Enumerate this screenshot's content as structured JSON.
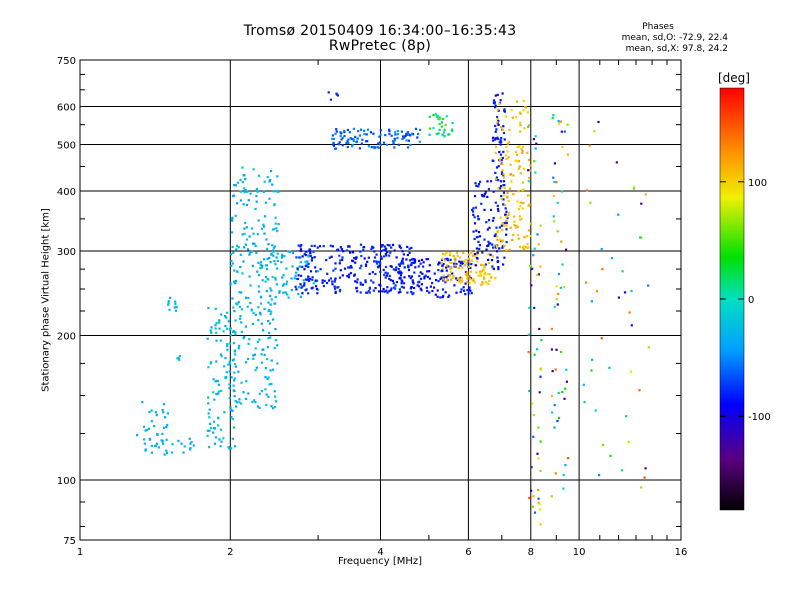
{
  "title": {
    "line1": "Tromsø 20150409 16:34:00–16:35:43",
    "line2": "RwPretec (8p)"
  },
  "phases": {
    "heading": "Phases",
    "o_stats": "mean, sd,O: -72.9, 22.4",
    "x_stats": "mean, sd,X: 97.8, 24.2"
  },
  "colorbar": {
    "unit_label": "[deg]",
    "ticks": [
      {
        "value": 100,
        "label": "100"
      },
      {
        "value": 0,
        "label": "0"
      },
      {
        "value": -100,
        "label": "-100"
      }
    ],
    "range": [
      -180,
      180
    ]
  },
  "chart_data": {
    "type": "scatter",
    "xlabel": "Frequency [MHz]",
    "ylabel": "Stationary phase Virtual Height [km]",
    "xscale": "log",
    "yscale": "log",
    "xlim": [
      1,
      16
    ],
    "ylim": [
      75,
      750
    ],
    "xticks": [
      {
        "value": 1,
        "label": "1"
      },
      {
        "value": 2,
        "label": "2"
      },
      {
        "value": 4,
        "label": "4"
      },
      {
        "value": 6,
        "label": "6"
      },
      {
        "value": 8,
        "label": "8"
      },
      {
        "value": 10,
        "label": "10"
      },
      {
        "value": 16,
        "label": "16"
      }
    ],
    "yticks": [
      {
        "value": 75,
        "label": "75"
      },
      {
        "value": 100,
        "label": "100"
      },
      {
        "value": 200,
        "label": "200"
      },
      {
        "value": 300,
        "label": "300"
      },
      {
        "value": 400,
        "label": "400"
      },
      {
        "value": 500,
        "label": "500"
      },
      {
        "value": 600,
        "label": "600"
      },
      {
        "value": 750,
        "label": "750"
      }
    ],
    "grid": true,
    "color_by": "phase (deg)",
    "clusters": [
      {
        "f": [
          1.3,
          1.5
        ],
        "h": [
          115,
          150
        ],
        "phase": [
          -40,
          -25
        ],
        "n": 30
      },
      {
        "f": [
          1.35,
          1.75
        ],
        "h": [
          113,
          122
        ],
        "phase": [
          -40,
          -25
        ],
        "n": 25
      },
      {
        "f": [
          1.48,
          1.58
        ],
        "h": [
          225,
          240
        ],
        "phase": [
          -35,
          -25
        ],
        "n": 10
      },
      {
        "f": [
          1.55,
          1.6
        ],
        "h": [
          175,
          185
        ],
        "phase": [
          -35,
          -25
        ],
        "n": 4
      },
      {
        "f": [
          1.8,
          2.05
        ],
        "h": [
          115,
          235
        ],
        "phase": [
          -40,
          -10
        ],
        "n": 110
      },
      {
        "f": [
          2.0,
          2.5
        ],
        "h": [
          140,
          450
        ],
        "phase": [
          -45,
          -15
        ],
        "n": 260
      },
      {
        "f": [
          2.3,
          3.0
        ],
        "h": [
          240,
          300
        ],
        "phase": [
          -40,
          -20
        ],
        "n": 70
      },
      {
        "f": [
          2.7,
          4.7
        ],
        "h": [
          245,
          310
        ],
        "phase": [
          -95,
          -70
        ],
        "n": 280
      },
      {
        "f": [
          4.2,
          6.1
        ],
        "h": [
          240,
          290
        ],
        "phase": [
          -95,
          -75
        ],
        "n": 160
      },
      {
        "f": [
          5.3,
          6.8
        ],
        "h": [
          255,
          300
        ],
        "phase": [
          95,
          115
        ],
        "n": 110
      },
      {
        "f": [
          6.1,
          7.2
        ],
        "h": [
          275,
          420
        ],
        "phase": [
          -95,
          -75
        ],
        "n": 110
      },
      {
        "f": [
          6.7,
          7.1
        ],
        "h": [
          400,
          640
        ],
        "phase": [
          -95,
          -75
        ],
        "n": 60
      },
      {
        "f": [
          6.8,
          8.0
        ],
        "h": [
          300,
          620
        ],
        "phase": [
          95,
          120
        ],
        "n": 140
      },
      {
        "f": [
          3.2,
          4.8
        ],
        "h": [
          490,
          540
        ],
        "phase": [
          -80,
          -40
        ],
        "n": 110
      },
      {
        "f": [
          5.0,
          5.6
        ],
        "h": [
          520,
          580
        ],
        "phase": [
          -40,
          60
        ],
        "n": 30
      },
      {
        "f": [
          3.1,
          3.3
        ],
        "h": [
          615,
          650
        ],
        "phase": [
          -90,
          -70
        ],
        "n": 5
      },
      {
        "f": [
          7.9,
          8.4
        ],
        "h": [
          80,
          600
        ],
        "phase": [
          -150,
          150
        ],
        "n": 55
      },
      {
        "f": [
          8.8,
          9.5
        ],
        "h": [
          85,
          600
        ],
        "phase": [
          -150,
          150
        ],
        "n": 55
      },
      {
        "f": [
          10.2,
          14.0
        ],
        "h": [
          95,
          600
        ],
        "phase": [
          -150,
          150
        ],
        "n": 45
      }
    ]
  }
}
